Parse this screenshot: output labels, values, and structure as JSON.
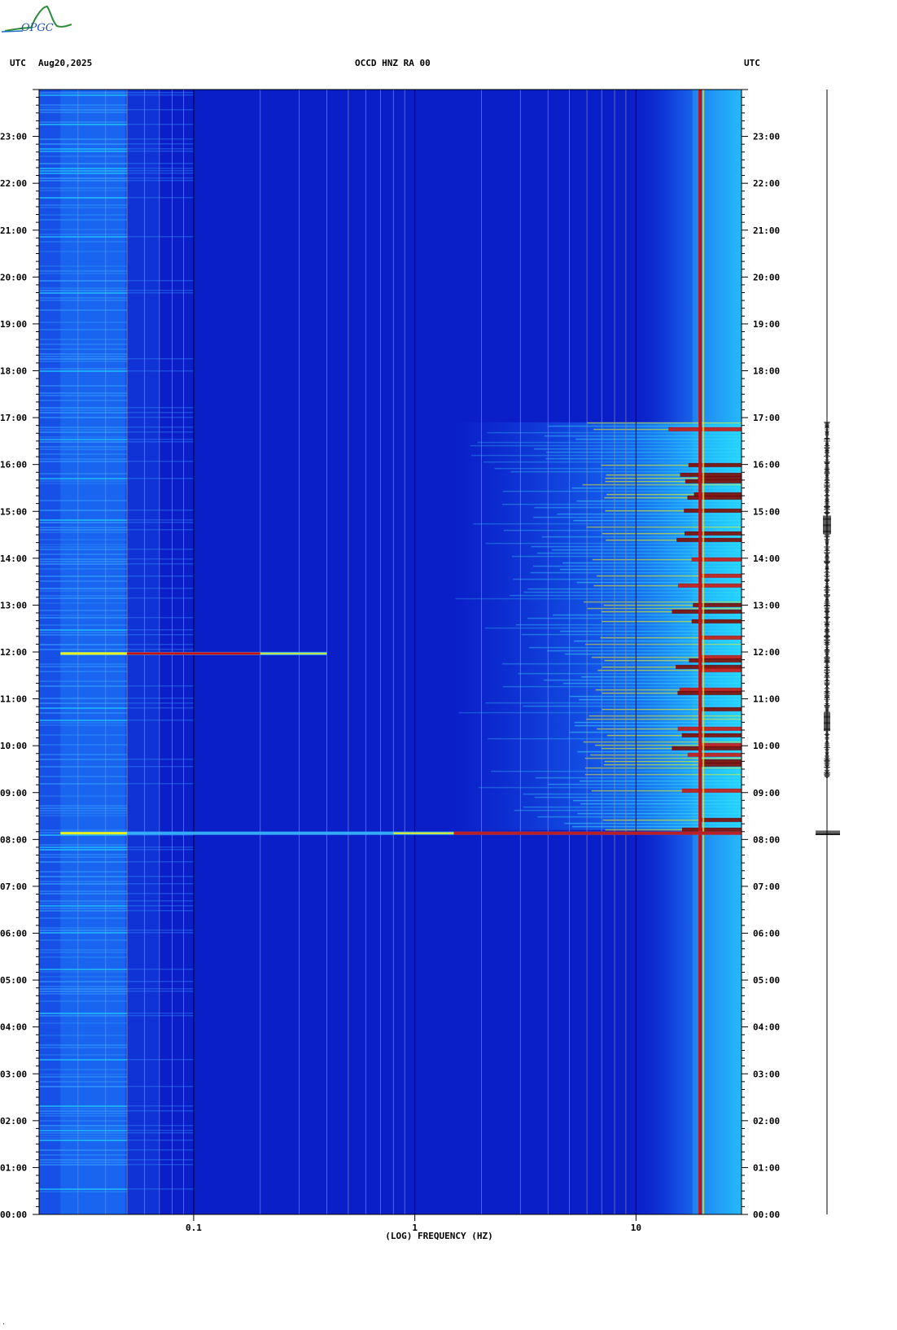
{
  "header": {
    "left_utc": "UTC",
    "date": "Aug20,2025",
    "station": "OCCD HNZ RA 00",
    "right_utc": "UTC"
  },
  "logo": {
    "text": "OPGC",
    "color": "#2e8b3a"
  },
  "colors": {
    "background": "#0a1fc8",
    "grid_major": "#000000",
    "grid_minor": "#9a9a9a",
    "cyan": "#22d8ff",
    "yellow": "#e8f020",
    "red": "#c81010",
    "dark_red": "#7a0000"
  },
  "chart_data": {
    "type": "heatmap",
    "title": "OCCD HNZ RA 00",
    "xlabel": "(LOG) FREQUENCY (HZ)",
    "x_scale": "log",
    "xlim": [
      0.02,
      30
    ],
    "x_ticks": [
      {
        "value": 0.1,
        "label": "0.1"
      },
      {
        "value": 1,
        "label": "1"
      },
      {
        "value": 10,
        "label": "10"
      }
    ],
    "y_ticks": [
      "00:00",
      "01:00",
      "02:00",
      "03:00",
      "04:00",
      "05:00",
      "06:00",
      "07:00",
      "08:00",
      "09:00",
      "10:00",
      "11:00",
      "12:00",
      "13:00",
      "14:00",
      "15:00",
      "16:00",
      "17:00",
      "18:00",
      "19:00",
      "20:00",
      "21:00",
      "22:00",
      "23:00"
    ],
    "ylim_hours": [
      0,
      24
    ],
    "grid": true,
    "features": {
      "constant_line_hz": 19.5,
      "events": [
        {
          "time": "08:08",
          "fmax_hz": 30,
          "strength": "strong"
        },
        {
          "time": "11:58",
          "fmax_hz": 0.4,
          "strength": "moderate"
        }
      ],
      "daytime_noise_hours": [
        8.2,
        16.9
      ]
    },
    "trace_amplitude": "high amplitude 08:08, bursts 09:30-16:50"
  }
}
